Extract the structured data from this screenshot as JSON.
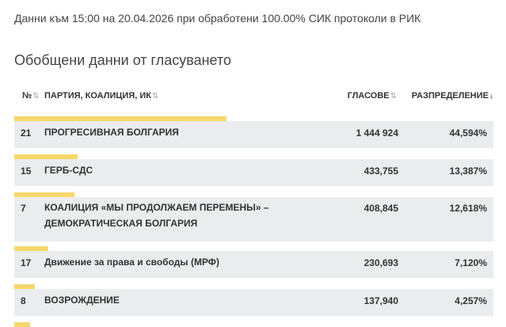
{
  "info_line": "Данни към 15:00 на 20.04.2026 при обработени 100.00% СИК протоколи в РИК",
  "section_title": "Обобщени данни от гласуването",
  "table": {
    "headers": {
      "num": "№",
      "party": "ПАРТИЯ, КОАЛИЦИЯ, ИК",
      "votes": "ГЛАСОВЕ",
      "distribution": "РАЗПРЕДЕЛЕНИЕ"
    },
    "sort_icons": {
      "num": "⇅",
      "party": "⇅",
      "votes": "⇅",
      "distribution": "↓"
    },
    "rows": [
      {
        "num": "21",
        "party": "ПРОГРЕСИВНАЯ БОЛГАРИЯ",
        "votes": "1 444 924",
        "pct": "44,594%",
        "share": 0.44594
      },
      {
        "num": "15",
        "party": "ГЕРБ-СДС",
        "votes": "433,755",
        "pct": "13,387%",
        "share": 0.13387
      },
      {
        "num": "7",
        "party": "КОАЛИЦИЯ «МЫ ПРОДОЛЖАЕМ ПЕРЕМЕНЫ» – ДЕМОКРАТИЧЕСКАЯ БОЛГАРИЯ",
        "votes": "408,845",
        "pct": "12,618%",
        "share": 0.12618
      },
      {
        "num": "17",
        "party": "Движение за права и свободы (МРФ)",
        "votes": "230,693",
        "pct": "7,120%",
        "share": 0.0712
      },
      {
        "num": "8",
        "party": "ВОЗРОЖДЕНИЕ",
        "votes": "137,940",
        "pct": "4,257%",
        "share": 0.04257
      }
    ]
  },
  "colors": {
    "share_bar": "#f5d76b",
    "row_background": "#eaecee"
  }
}
